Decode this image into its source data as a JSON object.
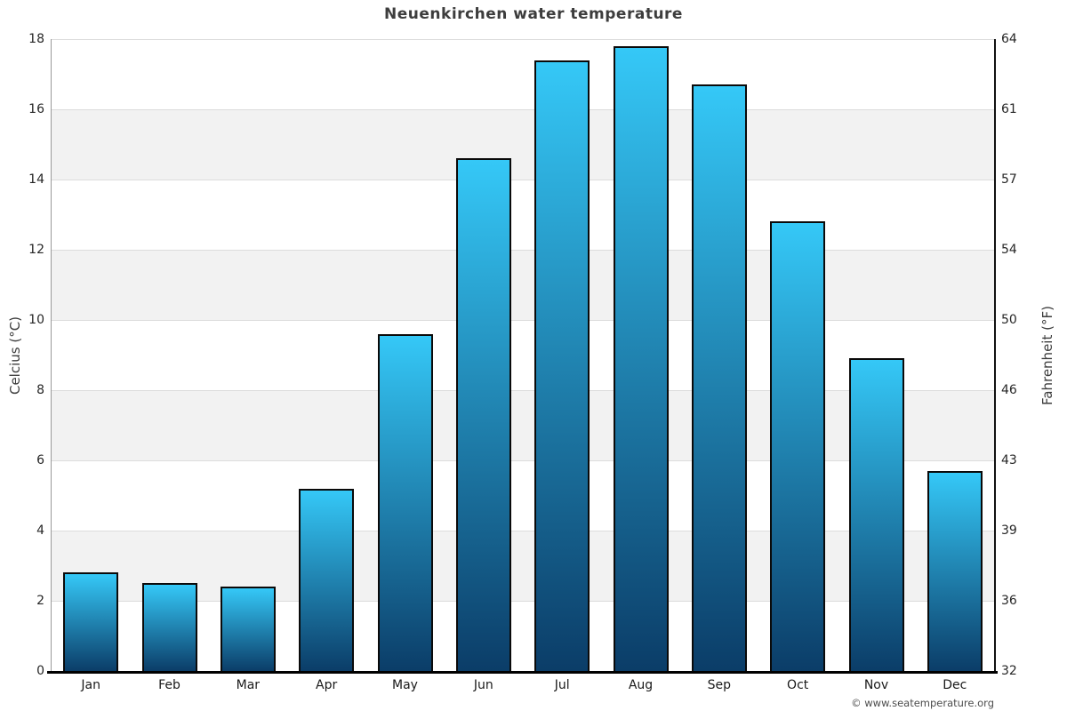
{
  "title": "Neuenkirchen water temperature",
  "footer": {
    "credit": "© www.seatemperature.org"
  },
  "chart_data": {
    "type": "bar",
    "title": "Neuenkirchen water temperature",
    "categories": [
      "Jan",
      "Feb",
      "Mar",
      "Apr",
      "May",
      "Jun",
      "Jul",
      "Aug",
      "Sep",
      "Oct",
      "Nov",
      "Dec"
    ],
    "values": [
      2.8,
      2.5,
      2.4,
      5.2,
      9.6,
      14.6,
      17.4,
      17.8,
      16.7,
      12.8,
      8.9,
      5.7
    ],
    "unit_left": "°C",
    "unit_right": "°F",
    "ylabel_left": "Celcius (°C)",
    "ylabel_right": "Fahrenheit (°F)",
    "ylim_left": [
      0,
      18
    ],
    "yticks_left": [
      0,
      2,
      4,
      6,
      8,
      10,
      12,
      14,
      16,
      18
    ],
    "yticks_right_labels": [
      "32",
      "36",
      "39",
      "43",
      "46",
      "50",
      "54",
      "57",
      "61",
      "64"
    ],
    "legend": "none",
    "grid": "horizontal-bands-every-2-degrees",
    "colors": {
      "bar_gradient_top": "#35c8f7",
      "bar_gradient_bottom": "#0b3d68",
      "bar_border": "#0a0a0a",
      "band_fill": "#f2f2f2",
      "band_alt_fill": "#ffffff",
      "grid_line": "#dcdcdc",
      "axis_left_line": "#9a9a9a",
      "axis_right_line": "#111111",
      "axis_bottom_line": "#000000",
      "title_text": "#3d3d3d",
      "tick_text": "#262626",
      "credit_text": "#4d4d4d"
    }
  }
}
